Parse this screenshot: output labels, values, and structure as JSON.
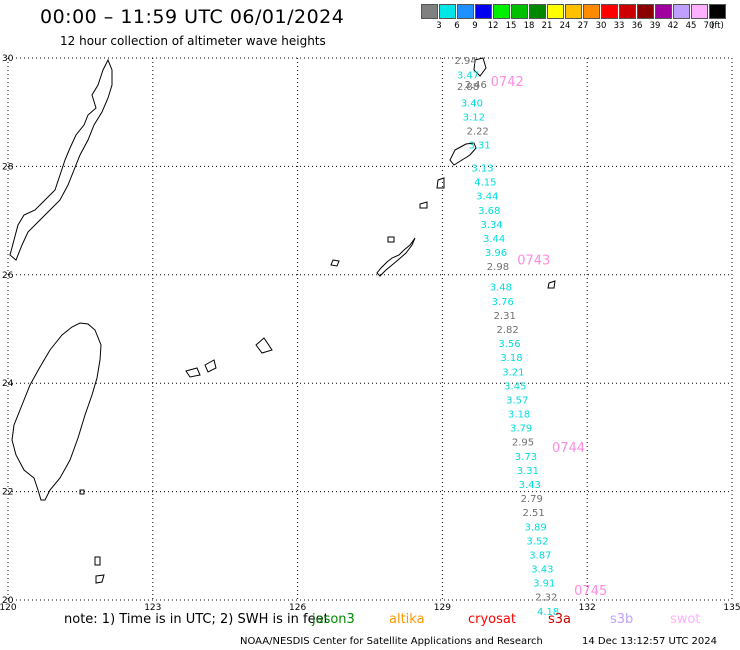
{
  "title": "00:00 – 11:59 UTC 06/01/2024",
  "subtitle": "12 hour collection of altimeter wave heights",
  "colorbar": {
    "labels": [
      "3",
      "6",
      "9",
      "12",
      "15",
      "18",
      "21",
      "24",
      "27",
      "30",
      "33",
      "36",
      "39",
      "42",
      "45",
      "70"
    ],
    "unit": "(ft)",
    "colors": [
      "#808080",
      "#00e5e5",
      "#1e90ff",
      "#0000ee",
      "#00ee00",
      "#00c000",
      "#008800",
      "#ffff00",
      "#ffc000",
      "#ff8c00",
      "#ff0000",
      "#cc0000",
      "#8b0000",
      "#a000a0",
      "#c0a0ff",
      "#ffb0ff",
      "#000000"
    ]
  },
  "map": {
    "lat_ticks": [
      "30",
      "28",
      "26",
      "24",
      "22",
      "20"
    ],
    "lon_ticks": [
      "120",
      "123",
      "126",
      "129",
      "132",
      "135"
    ],
    "lat_range": [
      20,
      30
    ],
    "lon_range": [
      120,
      135
    ],
    "grid": "dotted"
  },
  "track_time_labels": [
    {
      "text": "0742",
      "lat": 29.58,
      "lon": 130.0
    },
    {
      "text": "0743",
      "lat": 26.28,
      "lon": 130.55
    },
    {
      "text": "0744",
      "lat": 22.82,
      "lon": 131.27
    },
    {
      "text": "0745",
      "lat": 20.18,
      "lon": 131.73
    }
  ],
  "observations": [
    {
      "v": "2.94",
      "lat": 29.96,
      "lon": 129.25,
      "c": "grey"
    },
    {
      "v": "3.47",
      "lat": 29.7,
      "lon": 129.3,
      "c": "cyan"
    },
    {
      "v": "2.46",
      "lat": 29.52,
      "lon": 129.46,
      "c": "grey"
    },
    {
      "v": "2.88",
      "lat": 29.48,
      "lon": 129.3,
      "c": "grey"
    },
    {
      "v": "3.40",
      "lat": 29.18,
      "lon": 129.38,
      "c": "cyan"
    },
    {
      "v": "3.12",
      "lat": 28.92,
      "lon": 129.42,
      "c": "cyan"
    },
    {
      "v": "2.22",
      "lat": 28.66,
      "lon": 129.5,
      "c": "grey"
    },
    {
      "v": "3.31",
      "lat": 28.4,
      "lon": 129.54,
      "c": "cyan"
    },
    {
      "v": "3.13",
      "lat": 27.98,
      "lon": 129.6,
      "c": "cyan"
    },
    {
      "v": "4.15",
      "lat": 27.72,
      "lon": 129.66,
      "c": "cyan"
    },
    {
      "v": "3.44",
      "lat": 27.46,
      "lon": 129.7,
      "c": "cyan"
    },
    {
      "v": "3.68",
      "lat": 27.2,
      "lon": 129.74,
      "c": "cyan"
    },
    {
      "v": "3.34",
      "lat": 26.94,
      "lon": 129.79,
      "c": "cyan"
    },
    {
      "v": "3.44",
      "lat": 26.68,
      "lon": 129.84,
      "c": "cyan"
    },
    {
      "v": "3.96",
      "lat": 26.42,
      "lon": 129.88,
      "c": "cyan"
    },
    {
      "v": "2.98",
      "lat": 26.16,
      "lon": 129.92,
      "c": "grey"
    },
    {
      "v": "3.48",
      "lat": 25.78,
      "lon": 129.98,
      "c": "cyan"
    },
    {
      "v": "3.76",
      "lat": 25.52,
      "lon": 130.02,
      "c": "cyan"
    },
    {
      "v": "2.31",
      "lat": 25.26,
      "lon": 130.06,
      "c": "grey"
    },
    {
      "v": "2.82",
      "lat": 25.0,
      "lon": 130.12,
      "c": "grey"
    },
    {
      "v": "3.56",
      "lat": 24.74,
      "lon": 130.16,
      "c": "cyan"
    },
    {
      "v": "3.18",
      "lat": 24.48,
      "lon": 130.2,
      "c": "cyan"
    },
    {
      "v": "3.21",
      "lat": 24.22,
      "lon": 130.24,
      "c": "cyan"
    },
    {
      "v": "3.45",
      "lat": 23.96,
      "lon": 130.28,
      "c": "cyan"
    },
    {
      "v": "3.57",
      "lat": 23.7,
      "lon": 130.32,
      "c": "cyan"
    },
    {
      "v": "3.18",
      "lat": 23.44,
      "lon": 130.36,
      "c": "cyan"
    },
    {
      "v": "3.79",
      "lat": 23.18,
      "lon": 130.4,
      "c": "cyan"
    },
    {
      "v": "2.95",
      "lat": 22.92,
      "lon": 130.44,
      "c": "grey"
    },
    {
      "v": "3.73",
      "lat": 22.66,
      "lon": 130.5,
      "c": "cyan"
    },
    {
      "v": "3.31",
      "lat": 22.4,
      "lon": 130.54,
      "c": "cyan"
    },
    {
      "v": "3.43",
      "lat": 22.14,
      "lon": 130.58,
      "c": "cyan"
    },
    {
      "v": "2.79",
      "lat": 21.88,
      "lon": 130.62,
      "c": "grey"
    },
    {
      "v": "2.51",
      "lat": 21.62,
      "lon": 130.66,
      "c": "grey"
    },
    {
      "v": "3.89",
      "lat": 21.36,
      "lon": 130.7,
      "c": "cyan"
    },
    {
      "v": "3.52",
      "lat": 21.1,
      "lon": 130.74,
      "c": "cyan"
    },
    {
      "v": "3.87",
      "lat": 20.84,
      "lon": 130.8,
      "c": "cyan"
    },
    {
      "v": "3.43",
      "lat": 20.58,
      "lon": 130.84,
      "c": "cyan"
    },
    {
      "v": "3.91",
      "lat": 20.32,
      "lon": 130.88,
      "c": "cyan"
    },
    {
      "v": "2.32",
      "lat": 20.06,
      "lon": 130.92,
      "c": "grey"
    },
    {
      "v": "4.18",
      "lat": 19.8,
      "lon": 130.96,
      "c": "cyan"
    }
  ],
  "value_colors": {
    "grey": "#707070",
    "cyan": "#00dede",
    "time": "#ff8ce0"
  },
  "footer": {
    "note": "note: 1) Time is in UTC; 2) SWH is in feet",
    "satellites": [
      {
        "name": "jason3",
        "color": "#008800"
      },
      {
        "name": "altika",
        "color": "#ff9900"
      },
      {
        "name": "cryosat",
        "color": "#ff0000"
      },
      {
        "name": "s3a",
        "color": "#cc0000"
      },
      {
        "name": "s3b",
        "color": "#c0a0ff"
      },
      {
        "name": "swot",
        "color": "#ffb0ff"
      }
    ],
    "credit": "NOAA/NESDIS Center for Satellite Applications and Research",
    "timestamp": "14 Dec 13:12:57 UTC 2024"
  }
}
